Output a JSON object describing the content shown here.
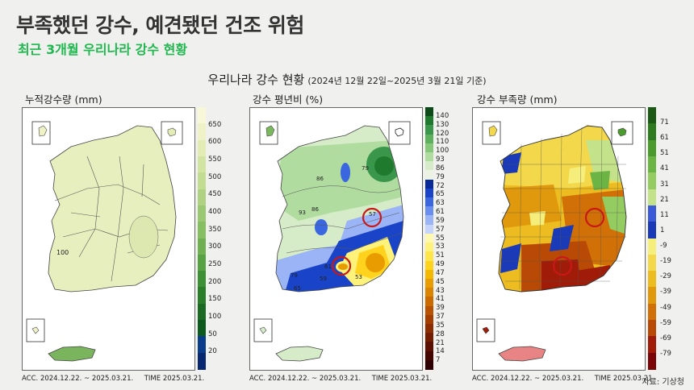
{
  "header": {
    "title": "부족했던 강수, 예견됐던 건조 위험",
    "subtitle": "최근 3개월 우리나라 강수 현황"
  },
  "figure": {
    "title": "우리나라 강수 현황",
    "date_range": "(2024년 12월 22일~2025년 3월 21일 기준)"
  },
  "panels": [
    {
      "label": "누적강수량 (mm)",
      "footer_acc": "ACC. 2024.12.22. ~ 2025.03.21.",
      "footer_time": "TIME 2025.03.21.",
      "ticks": [
        "650",
        "600",
        "550",
        "500",
        "450",
        "400",
        "350",
        "300",
        "250",
        "200",
        "150",
        "100",
        "50",
        "20"
      ],
      "contour_labels": [
        "100"
      ],
      "colors": [
        "#f8f8d8",
        "#eef2c6",
        "#e2ecb4",
        "#d2e4a2",
        "#c2dc92",
        "#aed282",
        "#9ac872",
        "#86be62",
        "#6eb052",
        "#56a244",
        "#3e9036",
        "#2a7e2a",
        "#1a6a24",
        "#0d5a1e",
        "#0a3c8c",
        "#072870"
      ]
    },
    {
      "label": "강수 평년비 (%)",
      "footer_acc": "ACC. 2024.12.22. ~ 2025.03.21.",
      "footer_time": "TIME 2025.03.21.",
      "ticks": [
        "140",
        "130",
        "120",
        "110",
        "100",
        "93",
        "86",
        "79",
        "72",
        "65",
        "63",
        "61",
        "59",
        "57",
        "55",
        "53",
        "51",
        "49",
        "47",
        "45",
        "43",
        "41",
        "39",
        "37",
        "35",
        "28",
        "21",
        "14",
        "7"
      ],
      "contour_labels": [
        "86",
        "79",
        "93",
        "86",
        "57",
        "61",
        "59",
        "65",
        "53",
        "79",
        "86",
        "65"
      ],
      "colors": [
        "#0d4a1a",
        "#1f7a2e",
        "#39964a",
        "#5cb05e",
        "#86c87a",
        "#b0dca0",
        "#d6ecc8",
        "#eaf3e4",
        "#0a2a9a",
        "#1a44c8",
        "#3a66e0",
        "#6a8ef0",
        "#9ab4f6",
        "#c4d4fa",
        "#fff9b0",
        "#fff27a",
        "#ffe54a",
        "#ffd21e",
        "#f5b800",
        "#e89c00",
        "#dc8400",
        "#cc6a00",
        "#b85200",
        "#a43e00",
        "#8c2c00",
        "#741c00",
        "#5c0e00",
        "#440400",
        "#2e0000"
      ]
    },
    {
      "label": "강수 부족량 (mm)",
      "footer_acc": "ACC. 2024.12.22. ~ 2025.03.21.",
      "footer_time": "TIME 2025.03.21.",
      "ticks": [
        "71",
        "61",
        "51",
        "41",
        "31",
        "21",
        "11",
        "1",
        "-9",
        "-19",
        "-29",
        "-39",
        "-49",
        "-59",
        "-69",
        "-79"
      ],
      "colors": [
        "#1a5a14",
        "#2e7a1e",
        "#4a9a2e",
        "#6cb444",
        "#94cc62",
        "#c4e28a",
        "#3a5ad8",
        "#1a3ab8",
        "#f6ee7a",
        "#f2d84a",
        "#ecbc20",
        "#e0980c",
        "#d07006",
        "#b84a06",
        "#a01c08",
        "#7a0406"
      ]
    }
  ],
  "source": "자료: 기상청"
}
